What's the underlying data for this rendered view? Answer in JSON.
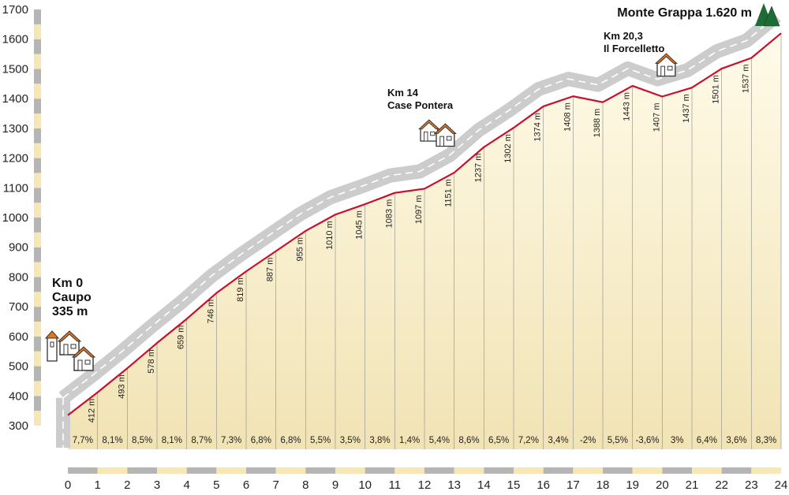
{
  "chart_data": {
    "type": "area",
    "title": "",
    "xlabel": "",
    "ylabel": "",
    "xlim": [
      0,
      24
    ],
    "ylim": [
      300,
      1700
    ],
    "x_ticks": [
      "0",
      "1",
      "2",
      "3",
      "4",
      "5",
      "6",
      "7",
      "8",
      "9",
      "10",
      "11",
      "12",
      "13",
      "14",
      "15",
      "16",
      "17",
      "18",
      "19",
      "20",
      "21",
      "22",
      "23",
      "24"
    ],
    "y_ticks": [
      "300",
      "400",
      "500",
      "600",
      "700",
      "800",
      "900",
      "1000",
      "1100",
      "1200",
      "1300",
      "1400",
      "1500",
      "1600",
      "1700"
    ],
    "profile": {
      "x": [
        0,
        1,
        2,
        3,
        4,
        5,
        6,
        7,
        8,
        9,
        10,
        11,
        12,
        13,
        14,
        15,
        16,
        17,
        18,
        19,
        20,
        21,
        22,
        23,
        24
      ],
      "y": [
        335,
        412,
        493,
        578,
        659,
        746,
        819,
        887,
        955,
        1010,
        1045,
        1083,
        1097,
        1151,
        1237,
        1302,
        1374,
        1408,
        1388,
        1443,
        1407,
        1437,
        1501,
        1537,
        1620
      ]
    },
    "elevation_labels": [
      {
        "x": 1,
        "label": "412 m"
      },
      {
        "x": 2,
        "label": "493 m"
      },
      {
        "x": 3,
        "label": "578 m"
      },
      {
        "x": 4,
        "label": "659 m"
      },
      {
        "x": 5,
        "label": "746 m"
      },
      {
        "x": 6,
        "label": "819 m"
      },
      {
        "x": 7,
        "label": "887 m"
      },
      {
        "x": 8,
        "label": "955 m"
      },
      {
        "x": 9,
        "label": "1010 m"
      },
      {
        "x": 10,
        "label": "1045 m"
      },
      {
        "x": 11,
        "label": "1083 m"
      },
      {
        "x": 12,
        "label": "1097 m"
      },
      {
        "x": 13,
        "label": "1151 m"
      },
      {
        "x": 14,
        "label": "1237 m"
      },
      {
        "x": 15,
        "label": "1302 m"
      },
      {
        "x": 16,
        "label": "1374 m"
      },
      {
        "x": 17,
        "label": "1408 m"
      },
      {
        "x": 18,
        "label": "1388 m"
      },
      {
        "x": 19,
        "label": "1443 m"
      },
      {
        "x": 20,
        "label": "1407 m"
      },
      {
        "x": 21,
        "label": "1437 m"
      },
      {
        "x": 22,
        "label": "1501 m"
      },
      {
        "x": 23,
        "label": "1537 m"
      }
    ],
    "gradients": [
      "7,7%",
      "8,1%",
      "8,5%",
      "8,1%",
      "8,7%",
      "7,3%",
      "6,8%",
      "6,8%",
      "5,5%",
      "3,5%",
      "3,8%",
      "1,4%",
      "5,4%",
      "8,6%",
      "6,5%",
      "7,2%",
      "3,4%",
      "-2%",
      "5,5%",
      "-3,6%",
      "3%",
      "6,4%",
      "3,6%",
      "8,3%"
    ],
    "annotations": [
      {
        "km": 0,
        "elev": 335,
        "lines": [
          "Km 0",
          "Caupo",
          "335 m"
        ],
        "icon": "houses-icon"
      },
      {
        "km": 14,
        "elev": 1237,
        "lines": [
          "Km 14",
          "Case Pontera"
        ],
        "icon": "houses-icon"
      },
      {
        "km": 20.3,
        "elev": 1430,
        "lines": [
          "Km 20,3",
          "Il Forcelletto"
        ],
        "icon": "house-icon"
      },
      {
        "km": 24,
        "elev": 1620,
        "lines": [
          "Monte Grappa 1.620 m"
        ],
        "icon": "mountain-icon"
      }
    ],
    "colors": {
      "profile_line": "#c8102e",
      "road_band": "#cccccc",
      "road_dash": "#ffffff",
      "fill_top": "#fffbe9",
      "fill_bottom": "#f1e3b4",
      "axis_band_gray": "#b5b5b5",
      "axis_band_cream": "#f7e7b4",
      "roof": "#e8731c",
      "mountain": "#1e6b35"
    }
  }
}
